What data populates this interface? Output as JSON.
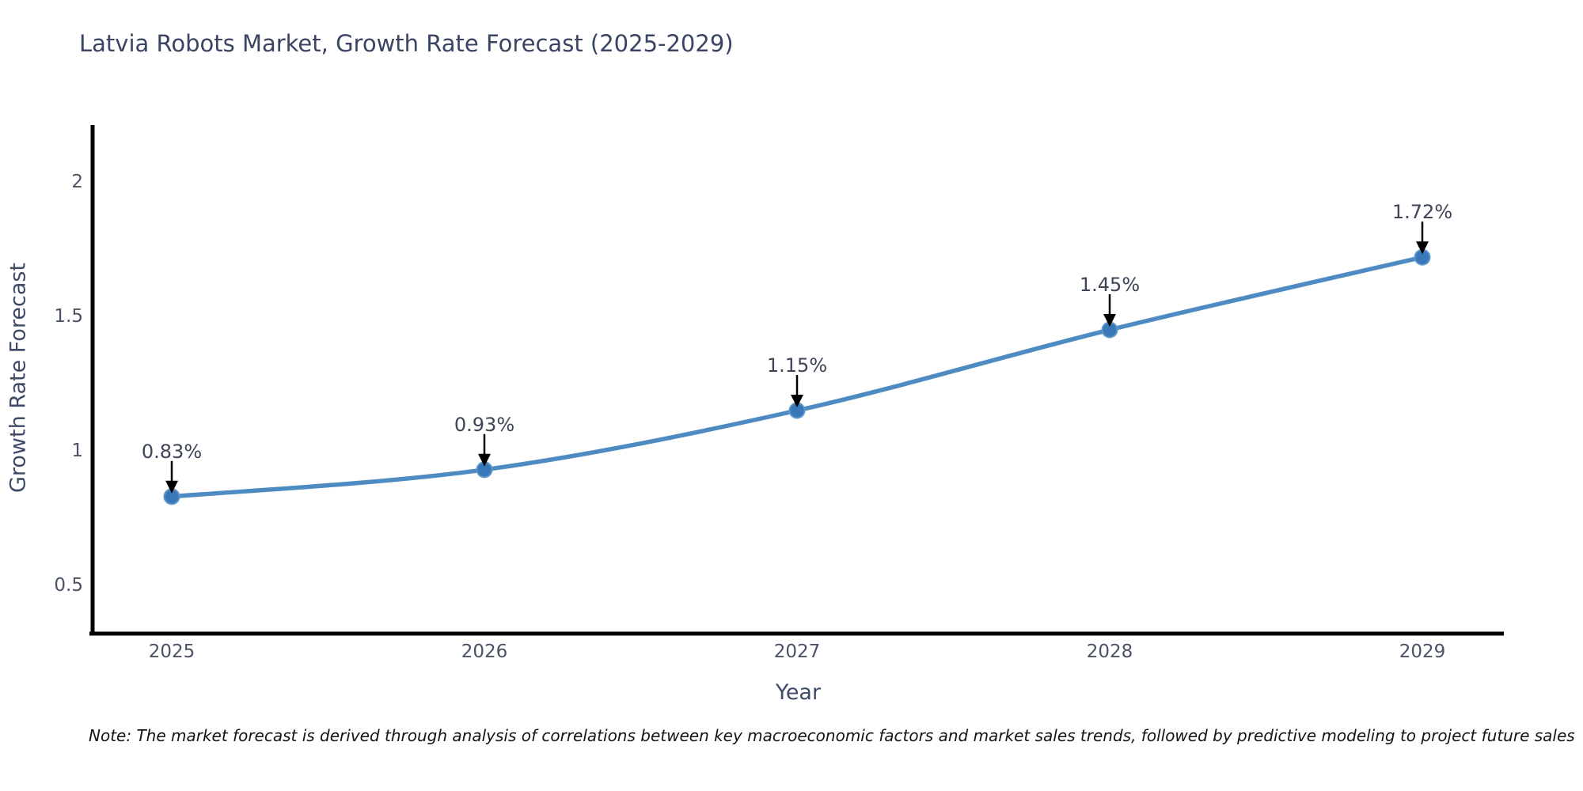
{
  "title": "Latvia Robots Market, Growth Rate Forecast (2025-2029)",
  "note": "Note: The market forecast is derived through analysis of correlations between key macroeconomic factors and market sales trends, followed by predictive modeling to project future sales",
  "chart_data": {
    "type": "line",
    "title": "Latvia Robots Market, Growth Rate Forecast (2025-2029)",
    "xlabel": "Year",
    "ylabel": "Growth Rate Forecast",
    "x": [
      2025,
      2026,
      2027,
      2028,
      2029
    ],
    "x_tick_labels": [
      "2025",
      "2026",
      "2027",
      "2028",
      "2029"
    ],
    "series": [
      {
        "name": "Growth Rate Forecast",
        "values": [
          0.83,
          0.93,
          1.15,
          1.45,
          1.72
        ]
      }
    ],
    "point_labels": [
      "0.83%",
      "0.93%",
      "1.15%",
      "1.45%",
      "1.72%"
    ],
    "y_ticks": [
      0.5,
      1,
      1.5,
      2
    ],
    "y_tick_labels": [
      "0.5",
      "1",
      "1.5",
      "2"
    ],
    "ylim": [
      0.32,
      2.21
    ],
    "xlim": [
      2024.75,
      2029.26
    ],
    "grid": false,
    "legend": false,
    "line_smooth": true,
    "colors": {
      "line": "#4e8bc2",
      "marker": "#3878b8",
      "marker_edge": "#5f97c9",
      "axis": "#000000",
      "tick_label": "#4a5365",
      "point_label": "#3d4456",
      "annotation_arrow": "#000000",
      "title": "#3a4563",
      "background": "#ffffff"
    }
  }
}
